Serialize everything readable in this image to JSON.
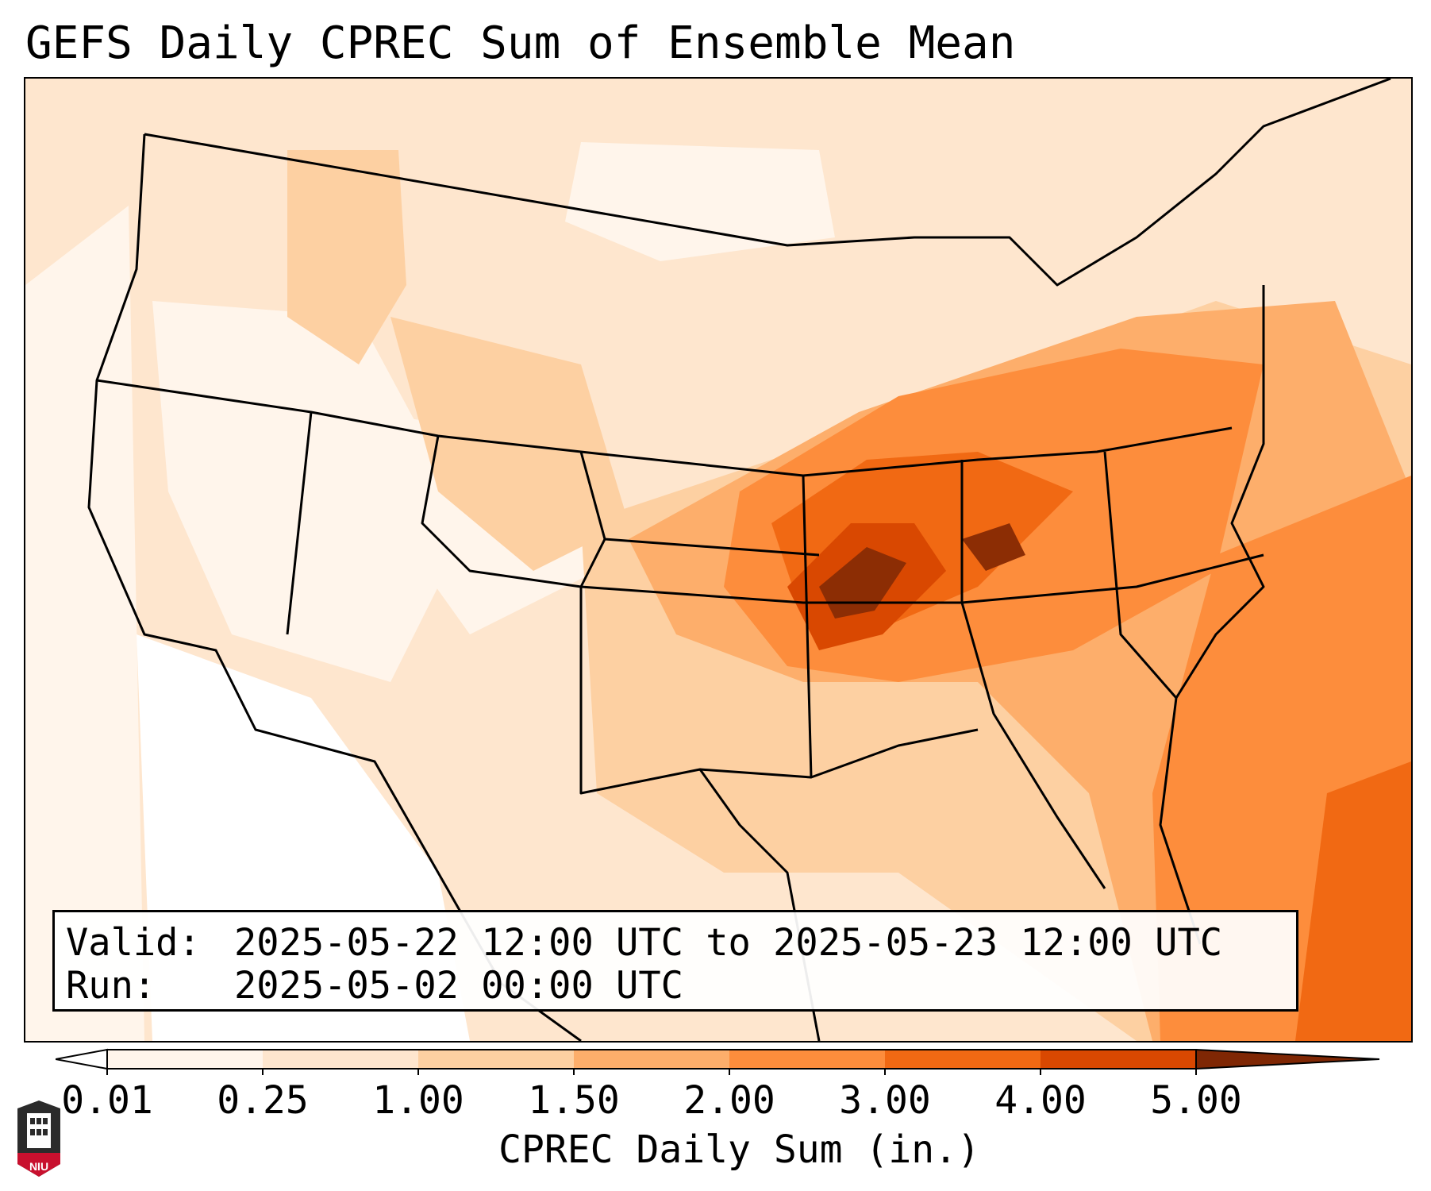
{
  "title": "GEFS Daily CPREC Sum of Ensemble Mean",
  "valid_box": {
    "valid_label": "Valid:",
    "valid_value": "2025-05-22 12:00 UTC to 2025-05-23 12:00 UTC",
    "run_label": "Run:",
    "run_value": "2025-05-02 00:00 UTC"
  },
  "colorbar": {
    "label": "CPREC Daily Sum (in.)",
    "ticks": [
      "0.01",
      "0.25",
      "1.00",
      "1.50",
      "2.00",
      "3.00",
      "4.00",
      "5.00"
    ],
    "colors": [
      "#fff5eb",
      "#fee6ce",
      "#fdd0a2",
      "#fdae6b",
      "#fd8d3c",
      "#f16913",
      "#d94801",
      "#8c2d04"
    ],
    "under_color": "#ffffff",
    "over_color": "#7f2704"
  },
  "logo": {
    "text": "NIU",
    "icon": "niu-tower-logo-icon",
    "color": "#c8102e"
  },
  "map": {
    "icon": "conus-precipitation-map",
    "colors": {
      "c0": "#ffffff",
      "c1": "#fff5eb",
      "c2": "#fee6ce",
      "c3": "#fdd0a2",
      "c4": "#fdae6b",
      "c5": "#fd8d3c",
      "c6": "#f16913",
      "c7": "#d94801",
      "c8": "#8c2d04"
    }
  }
}
